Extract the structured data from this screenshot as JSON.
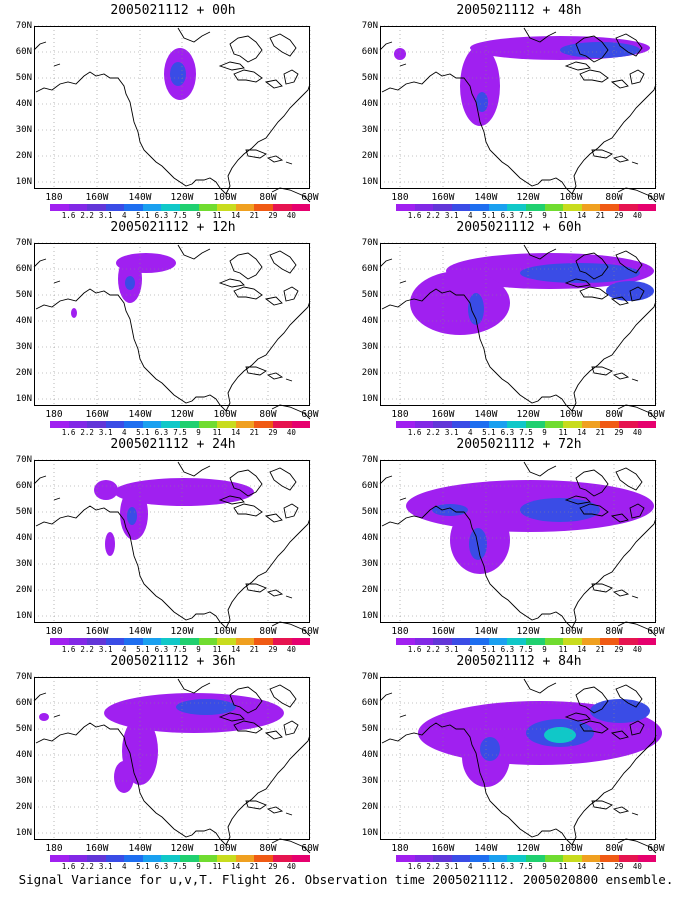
{
  "panels": [
    {
      "title": "2005021112 + 00h"
    },
    {
      "title": "2005021112 + 48h"
    },
    {
      "title": "2005021112 + 12h"
    },
    {
      "title": "2005021112 + 60h"
    },
    {
      "title": "2005021112 + 24h"
    },
    {
      "title": "2005021112 + 72h"
    },
    {
      "title": "2005021112 + 36h"
    },
    {
      "title": "2005021112 + 84h"
    }
  ],
  "lat_labels": [
    "70N",
    "60N",
    "50N",
    "40N",
    "30N",
    "20N",
    "10N"
  ],
  "lon_labels": [
    "180",
    "160W",
    "140W",
    "120W",
    "100W",
    "80W",
    "60W"
  ],
  "colorbar": {
    "labels": [
      "1.6",
      "2.2",
      "3.1",
      "4",
      "5.1",
      "6.3",
      "7.5",
      "9",
      "11",
      "14",
      "21",
      "29",
      "40"
    ],
    "colors": [
      "#a020f0",
      "#8228e6",
      "#6236d8",
      "#3a4ce6",
      "#1e6ef0",
      "#1aa0f0",
      "#10c8c8",
      "#20d070",
      "#70dc30",
      "#c8dc1e",
      "#f0a020",
      "#f05a14",
      "#e61450",
      "#e6006e"
    ]
  },
  "caption": "Signal Variance for u,v,T. Flight 26. Observation time 2005021112. 2005020800 ensemble."
}
